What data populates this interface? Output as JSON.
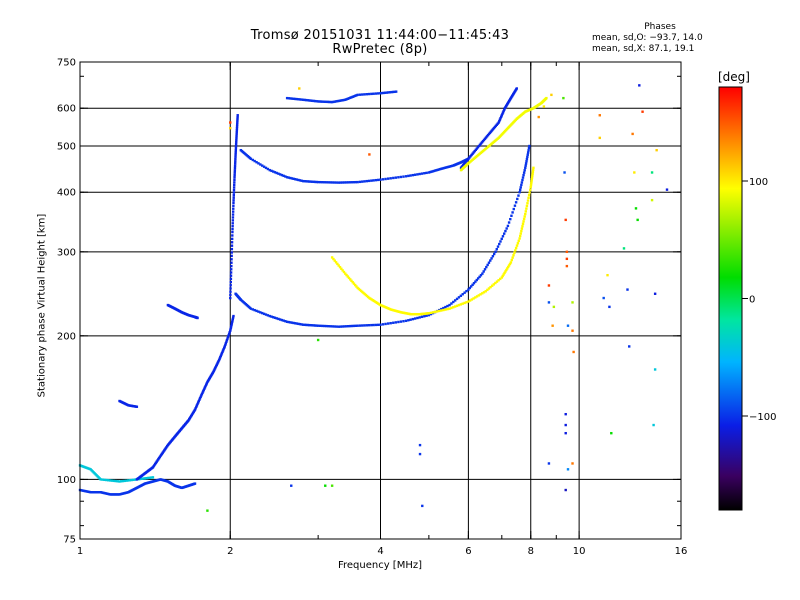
{
  "title_line1": "Tromsø 20151031 11:44:00−11:45:43",
  "title_line2": "RwPretec (8p)",
  "stats": {
    "title": "Phases",
    "o_line": "mean, sd,O: −93.7, 14.0",
    "x_line": "mean, sd,X:  87.1, 19.1"
  },
  "colorbar": {
    "unit_label": "[deg]",
    "ticks": [
      {
        "value": 100,
        "label": "100"
      },
      {
        "value": 0,
        "label": "0"
      },
      {
        "value": -100,
        "label": "−100"
      }
    ],
    "range": [
      -180,
      180
    ]
  },
  "chart_data": {
    "type": "scatter",
    "xlabel": "Frequency [MHz]",
    "ylabel": "Stationary phase Virtual Height [km]",
    "x_scale": "log",
    "y_scale": "log",
    "xlim": [
      1,
      16
    ],
    "ylim": [
      75,
      750
    ],
    "grid": true,
    "x_ticks": [
      {
        "value": 1,
        "label": "1"
      },
      {
        "value": 2,
        "label": "2"
      },
      {
        "value": 4,
        "label": "4"
      },
      {
        "value": 6,
        "label": "6"
      },
      {
        "value": 8,
        "label": "8"
      },
      {
        "value": 10,
        "label": "10"
      },
      {
        "value": 16,
        "label": "16"
      }
    ],
    "x_grid": [
      2,
      4,
      6,
      8,
      10
    ],
    "y_ticks": [
      {
        "value": 75,
        "label": "75"
      },
      {
        "value": 100,
        "label": "100"
      },
      {
        "value": 200,
        "label": "200"
      },
      {
        "value": 300,
        "label": "300"
      },
      {
        "value": 400,
        "label": "400"
      },
      {
        "value": 500,
        "label": "500"
      },
      {
        "value": 600,
        "label": "600"
      },
      {
        "value": 750,
        "label": "750"
      }
    ],
    "y_grid": [
      100,
      200,
      300,
      400,
      500,
      600
    ],
    "color_variable": "phase_deg",
    "series": [
      {
        "traces": [
          {
            "f": [
              1.0,
              1.05,
              1.1,
              1.15,
              1.2,
              1.25,
              1.3,
              1.35,
              1.4,
              1.45,
              1.5,
              1.55,
              1.6,
              1.65,
              1.7
            ],
            "h": [
              95,
              94,
              94,
              93,
              93,
              94,
              96,
              98,
              99,
              100,
              99,
              97,
              96,
              97,
              98
            ],
            "phase": -100
          },
          {
            "f": [
              1.0,
              1.05,
              1.1,
              1.2,
              1.3,
              1.4
            ],
            "h": [
              107,
              105,
              100,
              99,
              100,
              101
            ],
            "phase": -40
          },
          {
            "f": [
              1.3,
              1.35,
              1.4,
              1.45,
              1.5,
              1.55,
              1.6,
              1.65,
              1.7,
              1.75,
              1.8,
              1.85,
              1.9,
              1.95,
              2.0,
              2.03
            ],
            "h": [
              100,
              103,
              106,
              112,
              118,
              123,
              128,
              133,
              140,
              150,
              160,
              168,
              178,
              190,
              205,
              220
            ],
            "phase": -105
          },
          {
            "f": [
              1.2,
              1.25,
              1.3
            ],
            "h": [
              146,
              143,
              142
            ],
            "phase": -105
          },
          {
            "f": [
              1.5,
              1.55,
              1.6,
              1.65,
              1.7,
              1.72
            ],
            "h": [
              232,
              228,
              224,
              221,
              219,
              218
            ],
            "phase": -105
          },
          {
            "f": [
              2.0,
              2.01,
              2.02,
              2.03,
              2.04,
              2.05,
              2.06,
              2.07
            ],
            "h": [
              240,
              280,
              330,
              380,
              430,
              480,
              530,
              580
            ],
            "phase": -105
          },
          {
            "f": [
              2.05,
              2.1,
              2.2,
              2.4,
              2.6,
              2.8,
              3.0,
              3.3,
              3.6,
              4.0,
              4.5,
              5.0,
              5.5,
              6.0,
              6.4,
              6.8,
              7.2,
              7.6,
              7.8,
              7.95
            ],
            "h": [
              245,
              238,
              228,
              220,
              214,
              211,
              210,
              209,
              210,
              211,
              215,
              221,
              232,
              250,
              270,
              300,
              340,
              400,
              450,
              500
            ],
            "phase": -100
          },
          {
            "f": [
              2.1,
              2.2,
              2.4,
              2.6,
              2.8,
              3.0,
              3.3,
              3.6,
              4.0,
              4.5,
              5.0,
              5.3,
              5.6,
              5.8,
              6.0
            ],
            "h": [
              490,
              470,
              445,
              430,
              422,
              420,
              419,
              420,
              425,
              432,
              440,
              448,
              455,
              462,
              470
            ],
            "phase": -100
          },
          {
            "f": [
              2.6,
              2.8,
              3.0,
              3.2,
              3.4,
              3.6,
              4.0,
              4.3
            ],
            "h": [
              630,
              625,
              620,
              618,
              625,
              640,
              645,
              650
            ],
            "phase": -100
          },
          {
            "f": [
              5.8,
              6.0,
              6.3,
              6.6,
              6.9,
              7.1,
              7.3,
              7.5
            ],
            "h": [
              450,
              470,
              500,
              530,
              560,
              600,
              630,
              660
            ],
            "phase": -105
          },
          {
            "f": [
              3.2,
              3.4,
              3.6,
              3.8,
              4.0,
              4.2,
              4.4,
              4.6,
              4.8,
              5.0,
              5.5,
              6.0,
              6.5,
              7.0,
              7.3,
              7.6,
              7.8,
              8.0,
              8.1
            ],
            "h": [
              292,
              270,
              252,
              240,
              232,
              227,
              224,
              222,
              222,
              223,
              228,
              236,
              248,
              265,
              285,
              320,
              360,
              410,
              450
            ],
            "phase": 95
          },
          {
            "f": [
              5.8,
              6.0,
              6.3,
              6.6,
              6.9,
              7.2,
              7.5,
              7.8,
              8.1,
              8.4,
              8.6
            ],
            "h": [
              445,
              460,
              480,
              500,
              520,
              545,
              570,
              590,
              600,
              615,
              630
            ],
            "phase": 90
          }
        ]
      },
      {
        "points": [
          {
            "f": 2.65,
            "h": 97,
            "phase": -100
          },
          {
            "f": 3.1,
            "h": 97,
            "phase": 20
          },
          {
            "f": 3.2,
            "h": 97,
            "phase": 40
          },
          {
            "f": 4.8,
            "h": 118,
            "phase": -100
          },
          {
            "f": 4.8,
            "h": 113,
            "phase": -100
          },
          {
            "f": 4.85,
            "h": 88,
            "phase": -100
          },
          {
            "f": 3.0,
            "h": 196,
            "phase": 30
          },
          {
            "f": 1.8,
            "h": 86,
            "phase": 30
          },
          {
            "f": 2.0,
            "h": 560,
            "phase": 160
          },
          {
            "f": 2.0,
            "h": 545,
            "phase": 110
          },
          {
            "f": 2.75,
            "h": 660,
            "phase": 110
          },
          {
            "f": 3.8,
            "h": 480,
            "phase": 150
          },
          {
            "f": 8.5,
            "h": 605,
            "phase": 100
          },
          {
            "f": 8.3,
            "h": 575,
            "phase": 130
          },
          {
            "f": 8.8,
            "h": 640,
            "phase": 110
          },
          {
            "f": 8.7,
            "h": 255,
            "phase": 160
          },
          {
            "f": 8.7,
            "h": 235,
            "phase": -90
          },
          {
            "f": 8.85,
            "h": 210,
            "phase": 130
          },
          {
            "f": 8.9,
            "h": 230,
            "phase": 70
          },
          {
            "f": 9.3,
            "h": 630,
            "phase": 40
          },
          {
            "f": 9.35,
            "h": 440,
            "phase": -90
          },
          {
            "f": 9.4,
            "h": 350,
            "phase": 160
          },
          {
            "f": 9.45,
            "h": 300,
            "phase": 150
          },
          {
            "f": 9.45,
            "h": 290,
            "phase": 160
          },
          {
            "f": 9.45,
            "h": 280,
            "phase": 150
          },
          {
            "f": 9.5,
            "h": 210,
            "phase": -80
          },
          {
            "f": 9.7,
            "h": 205,
            "phase": 140
          },
          {
            "f": 9.75,
            "h": 185,
            "phase": 140
          },
          {
            "f": 9.7,
            "h": 235,
            "phase": 70
          },
          {
            "f": 9.4,
            "h": 137,
            "phase": -110
          },
          {
            "f": 9.4,
            "h": 130,
            "phase": -110
          },
          {
            "f": 9.4,
            "h": 125,
            "phase": -110
          },
          {
            "f": 9.5,
            "h": 105,
            "phase": -70
          },
          {
            "f": 9.4,
            "h": 95,
            "phase": -120
          },
          {
            "f": 9.7,
            "h": 108,
            "phase": 140
          },
          {
            "f": 8.7,
            "h": 108,
            "phase": -100
          },
          {
            "f": 11.0,
            "h": 580,
            "phase": 140
          },
          {
            "f": 11.0,
            "h": 520,
            "phase": 110
          },
          {
            "f": 11.2,
            "h": 240,
            "phase": -90
          },
          {
            "f": 11.4,
            "h": 268,
            "phase": 100
          },
          {
            "f": 11.5,
            "h": 230,
            "phase": -100
          },
          {
            "f": 11.6,
            "h": 125,
            "phase": 20
          },
          {
            "f": 12.3,
            "h": 305,
            "phase": -10
          },
          {
            "f": 12.5,
            "h": 250,
            "phase": -100
          },
          {
            "f": 12.6,
            "h": 190,
            "phase": -100
          },
          {
            "f": 12.8,
            "h": 530,
            "phase": 140
          },
          {
            "f": 12.9,
            "h": 440,
            "phase": 100
          },
          {
            "f": 13.0,
            "h": 370,
            "phase": 20
          },
          {
            "f": 13.1,
            "h": 350,
            "phase": 20
          },
          {
            "f": 13.2,
            "h": 670,
            "phase": -110
          },
          {
            "f": 13.4,
            "h": 590,
            "phase": 160
          },
          {
            "f": 14.0,
            "h": 440,
            "phase": -10
          },
          {
            "f": 14.0,
            "h": 385,
            "phase": 80
          },
          {
            "f": 14.2,
            "h": 245,
            "phase": -110
          },
          {
            "f": 14.2,
            "h": 170,
            "phase": -40
          },
          {
            "f": 14.1,
            "h": 130,
            "phase": -40
          },
          {
            "f": 14.3,
            "h": 490,
            "phase": 110
          },
          {
            "f": 15.0,
            "h": 405,
            "phase": -110
          }
        ]
      }
    ]
  }
}
